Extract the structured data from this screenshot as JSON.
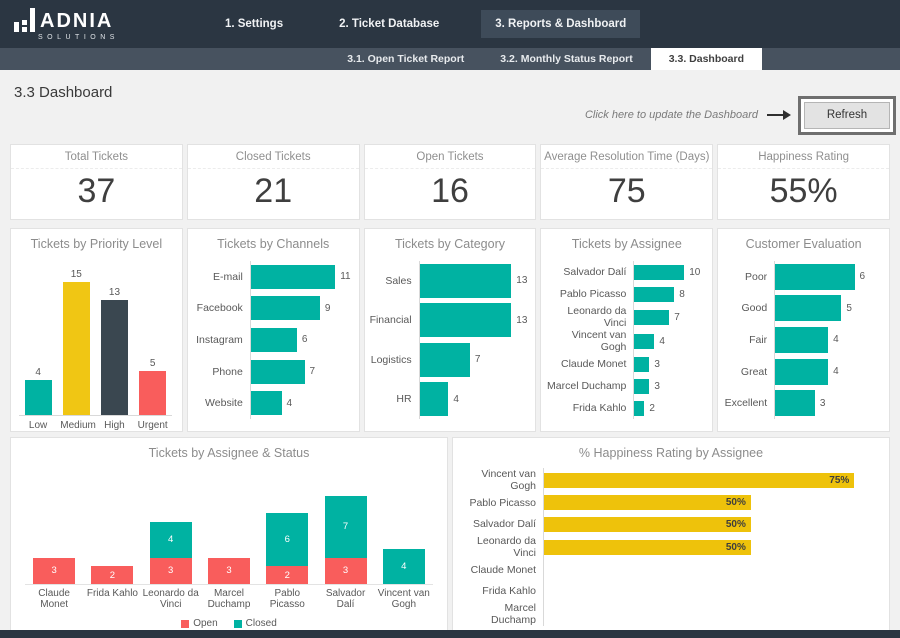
{
  "theme": {
    "header_bg": "#2b3642",
    "subnav_bg": "#47525f",
    "page_bg": "#f1f1f1",
    "teal": "#00b2a2",
    "yellow": "#eec20b",
    "red": "#f95d5c",
    "slate": "#3a4750"
  },
  "header": {
    "brand": {
      "name": "ADNIA",
      "sub": "SOLUTIONS"
    },
    "nav": [
      {
        "label": "1. Settings",
        "active": false
      },
      {
        "label": "2. Ticket Database",
        "active": false
      },
      {
        "label": "3. Reports & Dashboard",
        "active": true
      }
    ]
  },
  "subnav": {
    "tabs": [
      {
        "label": "3.1. Open Ticket Report",
        "active": false
      },
      {
        "label": "3.2. Monthly Status Report",
        "active": false
      },
      {
        "label": "3.3. Dashboard",
        "active": true
      }
    ]
  },
  "page": {
    "title": "3.3 Dashboard",
    "refresh_hint": "Click here to update the Dashboard",
    "refresh_label": "Refresh"
  },
  "kpis": [
    {
      "label": "Total Tickets",
      "value": "37"
    },
    {
      "label": "Closed Tickets",
      "value": "21"
    },
    {
      "label": "Open Tickets",
      "value": "16"
    },
    {
      "label": "Average Resolution Time (Days)",
      "value": "75"
    },
    {
      "label": "Happiness Rating",
      "value": "55%"
    }
  ],
  "chart_data": [
    {
      "type": "bar",
      "orientation": "vertical",
      "title": "Tickets by Priority Level",
      "categories": [
        "Low",
        "Medium",
        "High",
        "Urgent"
      ],
      "values": [
        4,
        15,
        13,
        5
      ],
      "colors": [
        "#00b2a2",
        "#f0c614",
        "#3a4750",
        "#f95d5c"
      ],
      "ylim": [
        0,
        16
      ],
      "data_labels": true
    },
    {
      "type": "bar",
      "orientation": "horizontal",
      "title": "Tickets by Channels",
      "categories": [
        "E-mail",
        "Facebook",
        "Instagram",
        "Phone",
        "Website"
      ],
      "values": [
        11,
        9,
        6,
        7,
        4
      ],
      "color": "#00b2a2",
      "xlim": [
        0,
        13
      ],
      "data_labels": true
    },
    {
      "type": "bar",
      "orientation": "horizontal",
      "title": "Tickets by Category",
      "categories": [
        "Sales",
        "Financial",
        "Logistics",
        "HR"
      ],
      "values": [
        13,
        13,
        7,
        4
      ],
      "color": "#00b2a2",
      "xlim": [
        0,
        15
      ],
      "data_labels": true
    },
    {
      "type": "bar",
      "orientation": "horizontal",
      "title": "Tickets by Assignee",
      "categories": [
        "Salvador Dalí",
        "Pablo Picasso",
        "Leonardo da Vinci",
        "Vincent van Gogh",
        "Claude Monet",
        "Marcel Duchamp",
        "Frida Kahlo"
      ],
      "values": [
        10,
        8,
        7,
        4,
        3,
        3,
        2
      ],
      "color": "#00b2a2",
      "xlim": [
        0,
        14
      ],
      "data_labels": true
    },
    {
      "type": "bar",
      "orientation": "horizontal",
      "title": "Customer Evaluation",
      "categories": [
        "Poor",
        "Good",
        "Fair",
        "Great",
        "Excellent"
      ],
      "values": [
        6,
        5,
        4,
        4,
        3
      ],
      "color": "#00b2a2",
      "xlim": [
        0,
        8
      ],
      "data_labels": true
    },
    {
      "type": "bar",
      "orientation": "vertical",
      "stacked": true,
      "title": "Tickets by Assignee & Status",
      "categories": [
        "Claude Monet",
        "Frida Kahlo",
        "Leonardo da Vinci",
        "Marcel Duchamp",
        "Pablo Picasso",
        "Salvador Dalí",
        "Vincent van Gogh"
      ],
      "series": [
        {
          "name": "Open",
          "color": "#f95d5c",
          "values": [
            3,
            2,
            3,
            3,
            2,
            3,
            0
          ]
        },
        {
          "name": "Closed",
          "color": "#00b2a2",
          "values": [
            0,
            0,
            4,
            0,
            6,
            7,
            4
          ]
        }
      ],
      "ylim": [
        0,
        12
      ],
      "legend_position": "bottom",
      "data_labels": true
    },
    {
      "type": "bar",
      "orientation": "horizontal",
      "title": "% Happiness Rating by Assignee",
      "categories": [
        "Vincent van Gogh",
        "Pablo Picasso",
        "Salvador Dalí",
        "Leonardo da Vinci",
        "Claude Monet",
        "Frida Kahlo",
        "Marcel Duchamp"
      ],
      "values": [
        75,
        50,
        50,
        50,
        null,
        null,
        null
      ],
      "value_labels": [
        "75%",
        "50%",
        "50%",
        "50%",
        "",
        "",
        ""
      ],
      "color": "#eec20b",
      "xlim": [
        0,
        80
      ],
      "data_labels": true
    }
  ]
}
